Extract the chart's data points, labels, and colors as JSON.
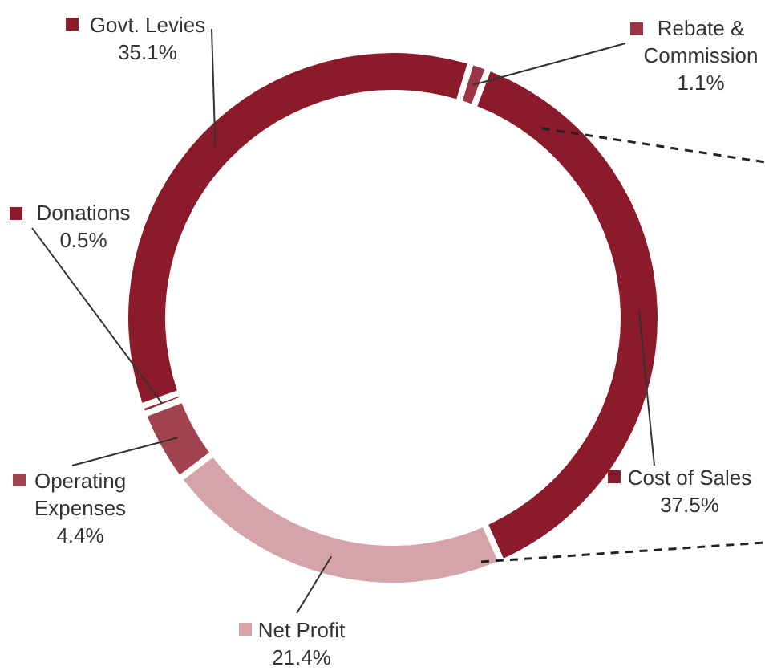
{
  "chart_data": {
    "type": "donut",
    "categories": [
      "Rebate & Commission",
      "Cost of Sales",
      "Net Profit",
      "Operating Expenses",
      "Donations",
      "Govt. Levies"
    ],
    "values": [
      1.1,
      37.5,
      21.4,
      4.4,
      0.5,
      35.1
    ],
    "colors": [
      "#9b3545",
      "#8b1a2a",
      "#d4a4aa",
      "#a24450",
      "#8b1a2a",
      "#8b1a2a"
    ],
    "value_labels": [
      "1.1%",
      "37.5%",
      "21.4%",
      "4.4%",
      "0.5%",
      "35.1%"
    ],
    "legend": true
  }
}
